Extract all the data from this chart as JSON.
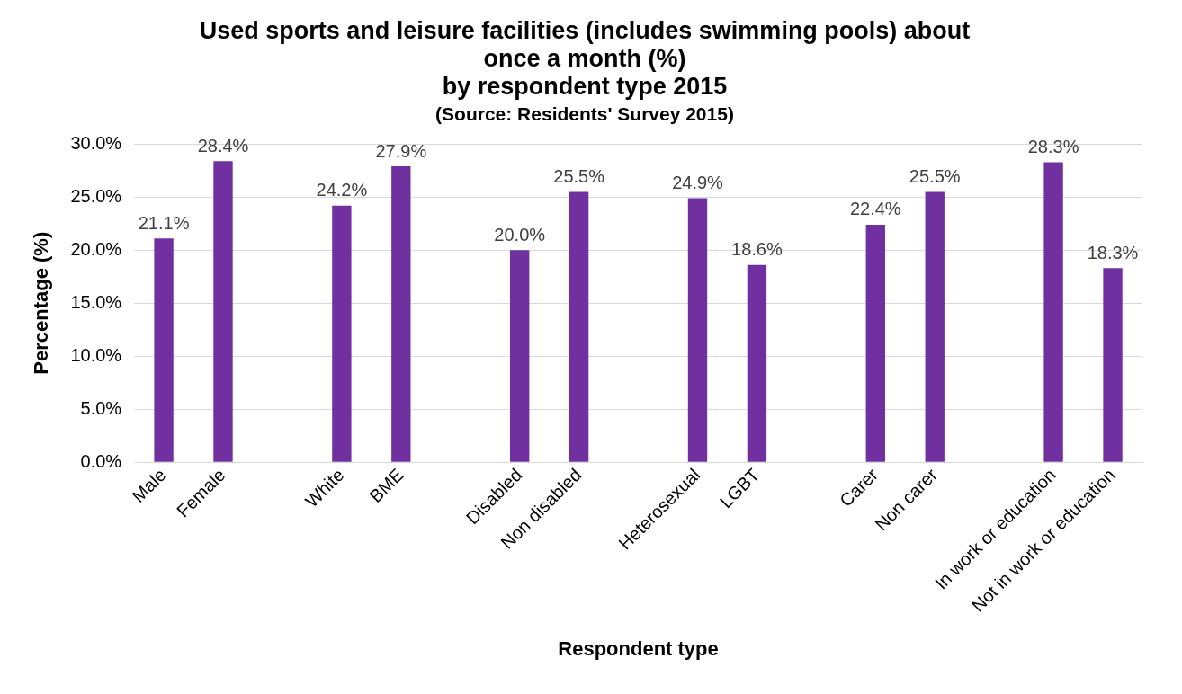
{
  "chart_data": {
    "type": "bar",
    "title": "Used sports and leisure facilities (includes swimming pools) about\nonce a month (%)\nby respondent type 2015",
    "subtitle": "(Source: Residents' Survey 2015)",
    "xlabel": "Respondent type",
    "ylabel": "Percentage (%)",
    "categories": [
      "Male",
      "Female",
      null,
      "White",
      "BME",
      null,
      "Disabled",
      "Non disabled",
      null,
      "Heterosexual",
      "LGBT",
      null,
      "Carer",
      "Non carer",
      null,
      "In work or education",
      "Not in work or education"
    ],
    "values": [
      21.1,
      28.4,
      null,
      24.2,
      27.9,
      null,
      20.0,
      25.5,
      null,
      24.9,
      18.6,
      null,
      22.4,
      25.5,
      null,
      28.3,
      18.3
    ],
    "value_labels": [
      "21.1%",
      "28.4%",
      null,
      "24.2%",
      "27.9%",
      null,
      "20.0%",
      "25.5%",
      null,
      "24.9%",
      "18.6%",
      null,
      "22.4%",
      "25.5%",
      null,
      "28.3%",
      "18.3%"
    ],
    "color": "#7030a0",
    "ylim": [
      0,
      30
    ],
    "yticks": [
      {
        "value": 0,
        "label": "0.0%"
      },
      {
        "value": 5,
        "label": "5.0%"
      },
      {
        "value": 10,
        "label": "10.0%"
      },
      {
        "value": 15,
        "label": "15.0%"
      },
      {
        "value": 20,
        "label": "20.0%"
      },
      {
        "value": 25,
        "label": "25.0%"
      },
      {
        "value": 30,
        "label": "30.0%"
      }
    ],
    "grid": "y",
    "legend": false
  }
}
